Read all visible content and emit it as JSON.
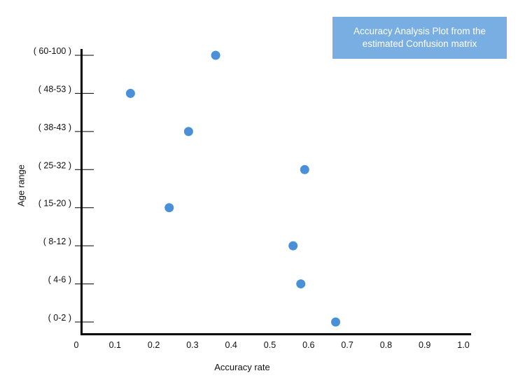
{
  "chart_data": {
    "type": "scatter",
    "title": "Accuracy Analysis Plot from the estimated Confusion matrix",
    "xlabel": "Accuracy rate",
    "ylabel": "Age range",
    "xlim": [
      0,
      1.0
    ],
    "x_ticks": [
      "0",
      "0.1",
      "0.2",
      "0.3",
      "0.4",
      "0.5",
      "0.6",
      "0.7",
      "0.8",
      "0.9",
      "1.0"
    ],
    "categories": [
      "( 60-100 )",
      "( 48-53 )",
      "( 38-43 )",
      "( 25-32 )",
      "( 15-20 )",
      "( 8-12 )",
      "( 4-6 )",
      "( 0-2 )"
    ],
    "values": [
      0.36,
      0.14,
      0.29,
      0.59,
      0.24,
      0.56,
      0.58,
      0.67
    ],
    "point_color": "#4a90d9",
    "title_box_color": "#78aee2",
    "grid": false,
    "title_position": "top-right"
  }
}
